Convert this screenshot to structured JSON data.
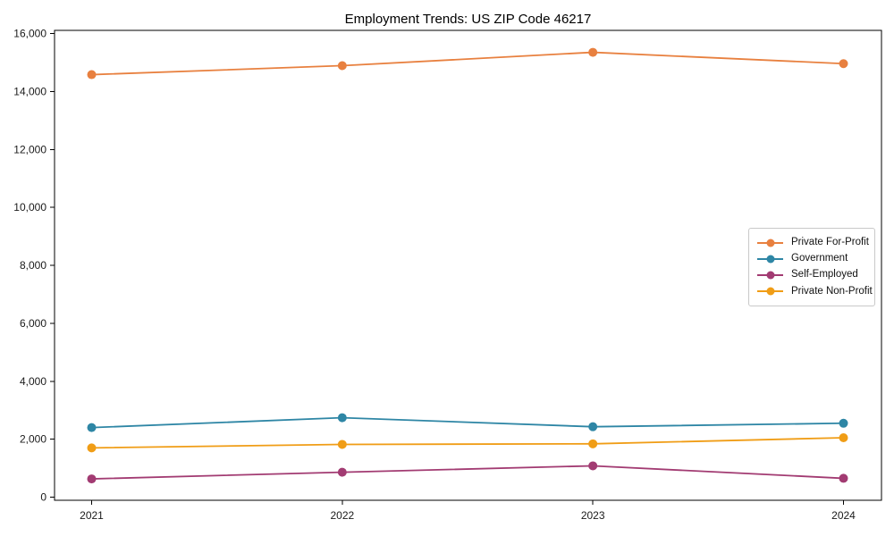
{
  "figure": {
    "background": "#ffffff",
    "axis_color": "#000000",
    "text_color": "#1a1a1a"
  },
  "chart_data": {
    "type": "line",
    "title": "Employment Trends: US ZIP Code 46217",
    "xlabel": "",
    "ylabel": "",
    "categories": [
      "2021",
      "2022",
      "2023",
      "2024"
    ],
    "series": [
      {
        "name": "Private For-Profit",
        "color": "#e8803f",
        "values": [
          14580,
          14890,
          15350,
          14960
        ]
      },
      {
        "name": "Government",
        "color": "#2e86a5",
        "values": [
          2400,
          2740,
          2430,
          2550
        ]
      },
      {
        "name": "Self-Employed",
        "color": "#a23b72",
        "values": [
          630,
          860,
          1080,
          650
        ]
      },
      {
        "name": "Private Non-Profit",
        "color": "#f09d16",
        "values": [
          1700,
          1820,
          1840,
          2050
        ]
      }
    ],
    "ylim": [
      0,
      16000
    ],
    "yticks": [
      {
        "value": 0,
        "label": "0"
      },
      {
        "value": 2000,
        "label": "2,000"
      },
      {
        "value": 4000,
        "label": "4,000"
      },
      {
        "value": 6000,
        "label": "6,000"
      },
      {
        "value": 8000,
        "label": "8,000"
      },
      {
        "value": 10000,
        "label": "10,000"
      },
      {
        "value": 12000,
        "label": "12,000"
      },
      {
        "value": 14000,
        "label": "14,000"
      },
      {
        "value": 16000,
        "label": "16,000"
      }
    ],
    "grid": false,
    "marker": "circle",
    "legend_position": "middle-right"
  }
}
